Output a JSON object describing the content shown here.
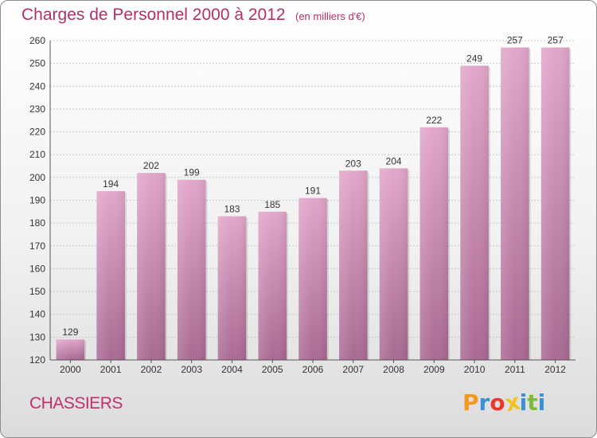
{
  "chart_data": {
    "type": "bar",
    "title": "Charges de Personnel 2000 à 2012",
    "subtitle": "(en milliers d'€)",
    "categories": [
      "2000",
      "2001",
      "2002",
      "2003",
      "2004",
      "2005",
      "2006",
      "2007",
      "2008",
      "2009",
      "2010",
      "2011",
      "2012"
    ],
    "values": [
      129,
      194,
      202,
      199,
      183,
      185,
      191,
      203,
      204,
      222,
      249,
      257,
      257
    ],
    "ylim": [
      120,
      260
    ],
    "yticks": [
      120,
      130,
      140,
      150,
      160,
      170,
      180,
      190,
      200,
      210,
      220,
      230,
      240,
      250,
      260
    ],
    "grid": true,
    "bar_color": "#c77aa6"
  },
  "commune": "CHASSIERS",
  "logo": {
    "letters": [
      {
        "ch": "P",
        "color": "#f29a1e"
      },
      {
        "ch": "r",
        "color": "#3a8fd6"
      },
      {
        "ch": "o",
        "color": "#e8392c"
      },
      {
        "ch": "x",
        "color": "#f2c31e"
      },
      {
        "ch": "i",
        "color": "#3a8fd6"
      },
      {
        "ch": "t",
        "color": "#7dbb38"
      },
      {
        "ch": "i",
        "color": "#3a8fd6"
      }
    ]
  }
}
